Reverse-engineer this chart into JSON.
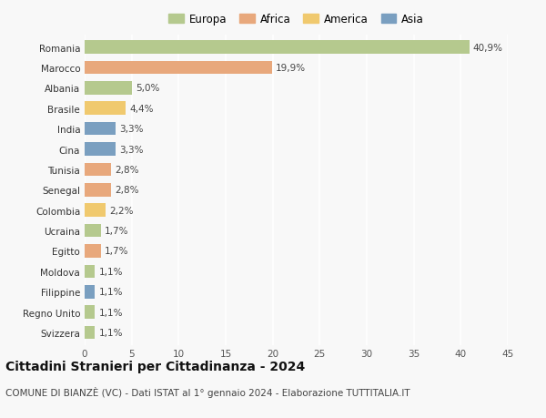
{
  "countries": [
    "Romania",
    "Marocco",
    "Albania",
    "Brasile",
    "India",
    "Cina",
    "Tunisia",
    "Senegal",
    "Colombia",
    "Ucraina",
    "Egitto",
    "Moldova",
    "Filippine",
    "Regno Unito",
    "Svizzera"
  ],
  "values": [
    40.9,
    19.9,
    5.0,
    4.4,
    3.3,
    3.3,
    2.8,
    2.8,
    2.2,
    1.7,
    1.7,
    1.1,
    1.1,
    1.1,
    1.1
  ],
  "labels": [
    "40,9%",
    "19,9%",
    "5,0%",
    "4,4%",
    "3,3%",
    "3,3%",
    "2,8%",
    "2,8%",
    "2,2%",
    "1,7%",
    "1,7%",
    "1,1%",
    "1,1%",
    "1,1%",
    "1,1%"
  ],
  "continents": [
    "Europa",
    "Africa",
    "Europa",
    "America",
    "Asia",
    "Asia",
    "Africa",
    "Africa",
    "America",
    "Europa",
    "Africa",
    "Europa",
    "Asia",
    "Europa",
    "Europa"
  ],
  "colors": {
    "Europa": "#b5c98e",
    "Africa": "#e8a87c",
    "America": "#f0c96e",
    "Asia": "#7a9fc0"
  },
  "legend_order": [
    "Europa",
    "Africa",
    "America",
    "Asia"
  ],
  "xlim": [
    0,
    45
  ],
  "xticks": [
    0,
    5,
    10,
    15,
    20,
    25,
    30,
    35,
    40,
    45
  ],
  "title": "Cittadini Stranieri per Cittadinanza - 2024",
  "subtitle": "COMUNE DI BIANZÈ (VC) - Dati ISTAT al 1° gennaio 2024 - Elaborazione TUTTITALIA.IT",
  "bg_color": "#f8f8f8",
  "grid_color": "#ffffff",
  "bar_height": 0.65,
  "title_fontsize": 10,
  "subtitle_fontsize": 7.5,
  "label_fontsize": 7.5,
  "tick_fontsize": 7.5,
  "legend_fontsize": 8.5
}
